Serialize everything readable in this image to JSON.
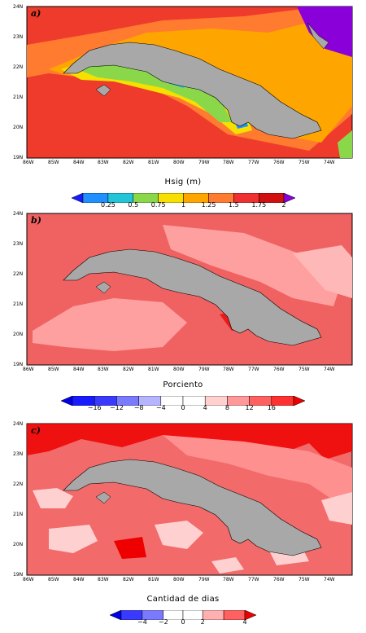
{
  "panels": [
    {
      "letter": "a)",
      "colorbar_title": "Hsig (m)",
      "colorbar_ticks": [
        "0.25",
        "0.5",
        "0.75",
        "1",
        "1.25",
        "1.5",
        "1.75",
        "2"
      ],
      "colorbar_colors": [
        "#1a1aff",
        "#1e90ff",
        "#22c5d8",
        "#8ad84a",
        "#f7e000",
        "#ffa500",
        "#ff7b30",
        "#ef3030",
        "#8a00d8"
      ],
      "background": "#ef3b2c"
    },
    {
      "letter": "b)",
      "colorbar_title": "Porciento",
      "colorbar_ticks": [
        "−16",
        "−12",
        "−8",
        "−4",
        "0",
        "4",
        "8",
        "12",
        "16"
      ],
      "colorbar_colors": [
        "#0000e6",
        "#3a3aff",
        "#7a7aff",
        "#b5b5ff",
        "#ffffff",
        "#ffd0d0",
        "#ff9898",
        "#ff6060",
        "#ee0000"
      ],
      "background": "#f06262"
    },
    {
      "letter": "c)",
      "colorbar_title": "Cantidad de dias",
      "colorbar_ticks": [
        "−4",
        "−2",
        "0",
        "2",
        "4"
      ],
      "colorbar_colors": [
        "#0000e6",
        "#7a7aff",
        "#ffffff",
        "#ffb0b0",
        "#ff6060",
        "#ee0000"
      ],
      "background": "#f26a6a"
    }
  ],
  "axes": {
    "lat_labels": [
      "24N",
      "23N",
      "22N",
      "21N",
      "20N",
      "19N"
    ],
    "lon_labels": [
      "86W",
      "85W",
      "84W",
      "83W",
      "82W",
      "81W",
      "80W",
      "79W",
      "78W",
      "77W",
      "76W",
      "75W",
      "74W"
    ]
  },
  "colors": {
    "land": "#a8a8a8",
    "coast": "#000000"
  }
}
